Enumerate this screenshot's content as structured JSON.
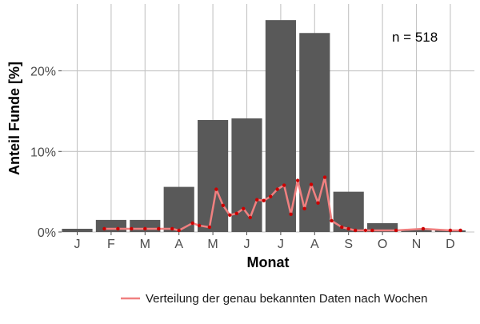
{
  "chart_data": {
    "type": "bar",
    "xlabel": "Monat",
    "ylabel": "Anteil Funde [%]",
    "annotation": "n = 518",
    "categories": [
      "J",
      "F",
      "M",
      "A",
      "M",
      "J",
      "J",
      "A",
      "S",
      "O",
      "N",
      "D"
    ],
    "yticks": [
      {
        "value": 0,
        "label": "0%"
      },
      {
        "value": 10,
        "label": "10%"
      },
      {
        "value": 20,
        "label": "20%"
      }
    ],
    "ylim": [
      0,
      28.3
    ],
    "grid": true,
    "series": [
      {
        "type": "bar",
        "values": [
          0.4,
          1.5,
          1.5,
          5.6,
          13.9,
          14.1,
          26.3,
          24.7,
          5.0,
          1.1,
          0.3,
          0.2
        ],
        "color": "#595959"
      },
      {
        "type": "line",
        "name": "Verteilung der genau bekannten Daten nach Wochen",
        "x": [
          1.8,
          2.2,
          2.6,
          3.0,
          3.4,
          3.8,
          4.0,
          4.4,
          4.6,
          4.9,
          5.1,
          5.3,
          5.5,
          5.7,
          5.9,
          6.1,
          6.3,
          6.5,
          6.7,
          6.9,
          7.1,
          7.3,
          7.5,
          7.7,
          7.9,
          8.1,
          8.3,
          8.5,
          8.8,
          9.0,
          9.2,
          9.5,
          9.7,
          10.4,
          11.2,
          12.0,
          12.3
        ],
        "y": [
          0.4,
          0.4,
          0.4,
          0.4,
          0.4,
          0.4,
          0.2,
          1.1,
          0.8,
          0.6,
          5.3,
          3.3,
          2.1,
          2.3,
          2.9,
          1.8,
          4.0,
          3.9,
          4.4,
          5.3,
          5.8,
          2.2,
          6.4,
          2.9,
          5.9,
          3.6,
          6.8,
          1.4,
          0.6,
          0.4,
          0.2,
          0.2,
          0.2,
          0.2,
          0.4,
          0.2,
          0.2
        ],
        "color": "#f08080",
        "marker_color": "#cc0000"
      }
    ],
    "legend": {
      "position": "bottom-right"
    }
  }
}
